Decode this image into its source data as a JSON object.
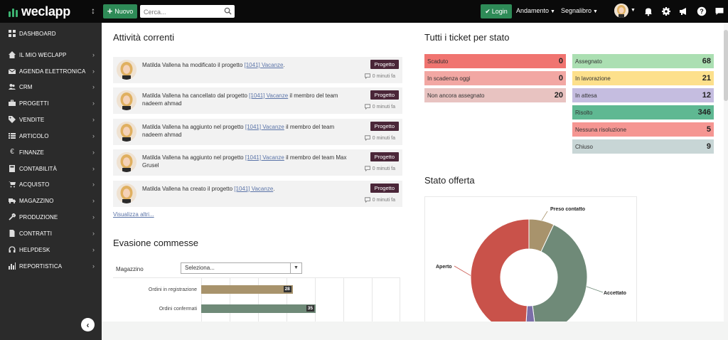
{
  "header": {
    "logo_text": "weclapp",
    "new_button": "Nuovo",
    "search_placeholder": "Cerca...",
    "login_button": "Login",
    "nav": [
      "Andamento",
      "Segnalibro"
    ]
  },
  "sidebar": {
    "items": [
      {
        "label": "DASHBOARD",
        "icon": "dashboard-icon"
      },
      {
        "label": "IL MIO WECLAPP",
        "icon": "home-icon"
      },
      {
        "label": "AGENDA ELETTRONICA",
        "icon": "envelope-icon"
      },
      {
        "label": "CRM",
        "icon": "users-icon"
      },
      {
        "label": "PROGETTI",
        "icon": "briefcase-icon"
      },
      {
        "label": "VENDITE",
        "icon": "tag-icon"
      },
      {
        "label": "ARTICOLO",
        "icon": "list-icon"
      },
      {
        "label": "FINANZE",
        "icon": "euro-icon"
      },
      {
        "label": "CONTABILITÀ",
        "icon": "calculator-icon"
      },
      {
        "label": "ACQUISTO",
        "icon": "cart-icon"
      },
      {
        "label": "MAGAZZINO",
        "icon": "truck-icon"
      },
      {
        "label": "PRODUZIONE",
        "icon": "wrench-icon"
      },
      {
        "label": "CONTRATTI",
        "icon": "file-icon"
      },
      {
        "label": "HELPDESK",
        "icon": "headset-icon"
      },
      {
        "label": "REPORTISTICA",
        "icon": "bar-chart-icon"
      }
    ]
  },
  "activities": {
    "title": "Attività correnti",
    "items": [
      {
        "before": "Matilda Vallena ha modificato il progetto ",
        "link": "[1041] Vacanze",
        "after": ".",
        "tag": "Progetto",
        "time": "0 minuti fa"
      },
      {
        "before": "Matilda Vallena ha cancellato dal progetto ",
        "link": "[1041] Vacanze",
        "after": " il membro del team nadeem ahmad",
        "tag": "Progetto",
        "time": "0 minuti fa"
      },
      {
        "before": "Matilda Vallena ha aggiunto nel progetto ",
        "link": "[1041] Vacanze",
        "after": " il membro del team nadeem ahmad",
        "tag": "Progetto",
        "time": "0 minuti fa"
      },
      {
        "before": "Matilda Vallena ha aggiunto nel progetto ",
        "link": "[1041] Vacanze",
        "after": " il membro del team Max Grusel",
        "tag": "Progetto",
        "time": "0 minuti fa"
      },
      {
        "before": "Matilda Vallena ha creato il progetto ",
        "link": "[1041] Vacanze",
        "after": ".",
        "tag": "Progetto",
        "time": "0 minuti fa"
      }
    ],
    "more_link": "Visualizza altri..."
  },
  "evasione": {
    "title": "Evasione commesse",
    "magazzino_label": "Magazzino",
    "select_value": "Seleziona...",
    "bars": [
      {
        "label": "Ordini in registrazione",
        "value": 28,
        "color": "#a8936c"
      },
      {
        "label": "Ordini confermati",
        "value": 35,
        "color": "#6f8a78"
      }
    ]
  },
  "tickets": {
    "title": "Tutti i ticket per stato",
    "left": [
      {
        "label": "Scaduto",
        "value": "0",
        "color": "#f07470"
      },
      {
        "label": "In scadenza oggi",
        "value": "0",
        "color": "#f2a7a3"
      },
      {
        "label": "Non ancora assegnato",
        "value": "20",
        "color": "#e8c3c1"
      }
    ],
    "right": [
      {
        "label": "Assegnato",
        "value": "68",
        "color": "#abdfb2"
      },
      {
        "label": "In lavorazione",
        "value": "21",
        "color": "#fde08c"
      },
      {
        "label": "In attesa",
        "value": "12",
        "color": "#c5bde0"
      },
      {
        "label": "Risolto",
        "value": "346",
        "color": "#5fb892"
      },
      {
        "label": "Nessuna risoluzione",
        "value": "5",
        "color": "#f59692"
      },
      {
        "label": "Chiuso",
        "value": "9",
        "color": "#c8d6d6"
      }
    ]
  },
  "offerta": {
    "title": "Stato offerta"
  },
  "chart_data": {
    "type": "pie",
    "title": "Stato offerta",
    "series": [
      {
        "name": "Preso contatto",
        "value": 7,
        "color": "#a8936c"
      },
      {
        "name": "Accettato",
        "value": 41,
        "color": "#6f8a78"
      },
      {
        "name": "Other",
        "value": 3,
        "color": "#7b6ea8"
      },
      {
        "name": "Aperto",
        "value": 49,
        "color": "#c9524a"
      }
    ],
    "labels_shown": [
      "Preso contatto",
      "Aperto",
      "Accettato"
    ]
  }
}
